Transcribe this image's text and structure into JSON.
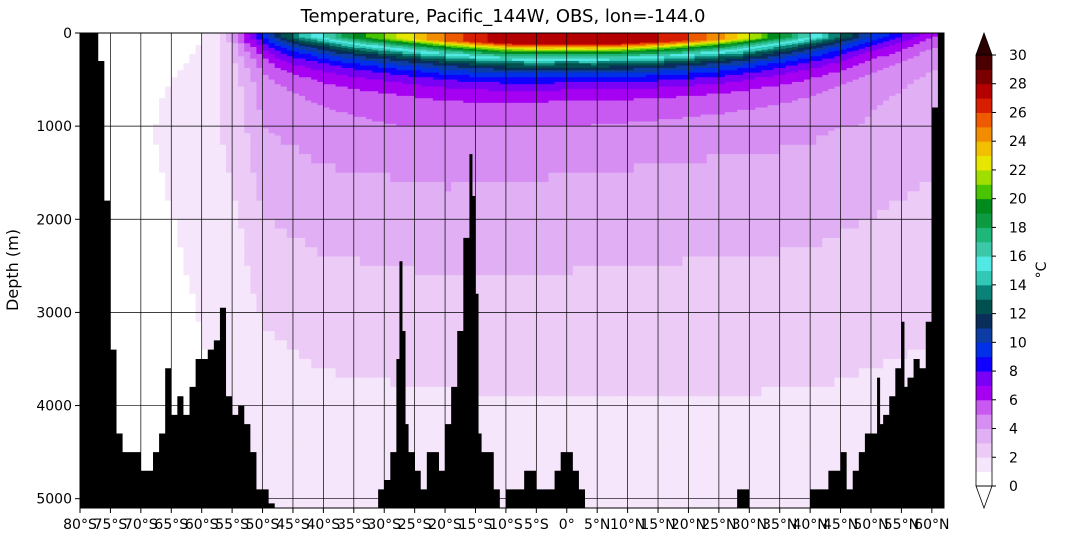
{
  "chart_data": {
    "type": "heatmap",
    "title": "Temperature, Pacific_144W, OBS, lon=-144.0",
    "xlabel": "",
    "ylabel": "Depth (m)",
    "xlim": [
      -80,
      62
    ],
    "ylim": [
      5100,
      0
    ],
    "x_ticks": [
      {
        "value": -80,
        "label": "80°S"
      },
      {
        "value": -75,
        "label": "75°S"
      },
      {
        "value": -70,
        "label": "70°S"
      },
      {
        "value": -65,
        "label": "65°S"
      },
      {
        "value": -60,
        "label": "60°S"
      },
      {
        "value": -55,
        "label": "55°S"
      },
      {
        "value": -50,
        "label": "50°S"
      },
      {
        "value": -45,
        "label": "45°S"
      },
      {
        "value": -40,
        "label": "40°S"
      },
      {
        "value": -35,
        "label": "35°S"
      },
      {
        "value": -30,
        "label": "30°S"
      },
      {
        "value": -25,
        "label": "25°S"
      },
      {
        "value": -20,
        "label": "20°S"
      },
      {
        "value": -15,
        "label": "15°S"
      },
      {
        "value": -10,
        "label": "10°S"
      },
      {
        "value": -5,
        "label": "5°S"
      },
      {
        "value": 0,
        "label": "0°"
      },
      {
        "value": 5,
        "label": "5°N"
      },
      {
        "value": 10,
        "label": "10°N"
      },
      {
        "value": 15,
        "label": "15°N"
      },
      {
        "value": 20,
        "label": "20°N"
      },
      {
        "value": 25,
        "label": "25°N"
      },
      {
        "value": 30,
        "label": "30°N"
      },
      {
        "value": 35,
        "label": "35°N"
      },
      {
        "value": 40,
        "label": "40°N"
      },
      {
        "value": 45,
        "label": "45°N"
      },
      {
        "value": 50,
        "label": "50°N"
      },
      {
        "value": 55,
        "label": "55°N"
      },
      {
        "value": 60,
        "label": "60°N"
      }
    ],
    "y_ticks": [
      0,
      1000,
      2000,
      3000,
      4000,
      5000
    ],
    "colorbar": {
      "label": "°C",
      "min": 0,
      "max": 30,
      "step": 1,
      "ticks": [
        0,
        2,
        4,
        6,
        8,
        10,
        12,
        14,
        16,
        18,
        20,
        22,
        24,
        26,
        28,
        30
      ],
      "extend": "both",
      "colors": [
        "#ffffff",
        "#f6e6fb",
        "#ecccf7",
        "#e1b0f4",
        "#d68ef3",
        "#c85af2",
        "#a500f2",
        "#7a00f5",
        "#1000ff",
        "#0030e8",
        "#0c3ca4",
        "#0a2e5a",
        "#00504f",
        "#0b8277",
        "#31c8b6",
        "#52e9e4",
        "#3cc8a8",
        "#1fb67a",
        "#0e9a40",
        "#008a1c",
        "#48c400",
        "#a0de00",
        "#e6e600",
        "#f2c000",
        "#f28c00",
        "#ee5a00",
        "#d81e00",
        "#b40000",
        "#7a0000",
        "#4a0000"
      ],
      "under_color": "#ffffff",
      "over_color": "#2b0000"
    },
    "series": [
      {
        "name": "surface_temperature",
        "x": [
          -76,
          -72,
          -68,
          -64,
          -60,
          -56,
          -52,
          -48,
          -44,
          -40,
          -35,
          -30,
          -25,
          -20,
          -15,
          -10,
          -5,
          0,
          5,
          10,
          15,
          20,
          25,
          30,
          35,
          40,
          45,
          50,
          55,
          60
        ],
        "values": [
          -1.5,
          -1,
          -0.5,
          0,
          1,
          2.5,
          7,
          11,
          14,
          16,
          19,
          21,
          23,
          25,
          26.5,
          27.5,
          27.5,
          27,
          27.5,
          27.5,
          27,
          26,
          24.5,
          22,
          19,
          16,
          13,
          10,
          8,
          6
        ]
      },
      {
        "name": "depth_1000m_temperature",
        "x": [
          -76,
          -60,
          -54,
          -50,
          -40,
          -20,
          0,
          20,
          40,
          50,
          60
        ],
        "values": [
          0.5,
          1.5,
          2.5,
          4,
          4.5,
          4.8,
          4.6,
          4.4,
          4.2,
          3.8,
          3.4
        ]
      },
      {
        "name": "bottom_temperature",
        "x": [
          -76,
          -60,
          -40,
          -20,
          0,
          20,
          40,
          60
        ],
        "values": [
          0.2,
          0.8,
          1.4,
          1.5,
          1.6,
          1.6,
          1.6,
          1.5
        ]
      },
      {
        "name": "seafloor_depth",
        "x": [
          -80,
          -79,
          -78,
          -77,
          -76,
          -75,
          -74,
          -73,
          -72,
          -71,
          -70,
          -69,
          -68,
          -67,
          -66,
          -65,
          -64,
          -63,
          -62,
          -61,
          -60,
          -59,
          -58,
          -57,
          -56,
          -55,
          -54,
          -53,
          -52,
          -51,
          -50,
          -49,
          -48,
          -47,
          -46,
          -45,
          -44,
          -42,
          -40,
          -38,
          -36,
          -34,
          -32,
          -31,
          -30,
          -29,
          -28,
          -27.5,
          -27,
          -26.5,
          -26,
          -25,
          -24,
          -23,
          -22,
          -21,
          -20,
          -19,
          -18,
          -17,
          -16,
          -15.5,
          -15,
          -14.5,
          -14,
          -13,
          -12,
          -11,
          -10,
          -9,
          -8,
          -7,
          -6,
          -5,
          -4,
          -3,
          -2,
          -1,
          0,
          1,
          2,
          3,
          4,
          5,
          6,
          7,
          8,
          9,
          10,
          12,
          15,
          18,
          20,
          22,
          25,
          27,
          28,
          30,
          32,
          35,
          38,
          40,
          41,
          42,
          43,
          44,
          45,
          46,
          47,
          48,
          49,
          50,
          51,
          51.5,
          52,
          53,
          54,
          55,
          55.5,
          56,
          57,
          58,
          59,
          60,
          61,
          62
        ],
        "values": [
          0,
          0,
          0,
          300,
          1800,
          3400,
          4300,
          4500,
          4500,
          4500,
          4700,
          4700,
          4500,
          4300,
          3600,
          4100,
          3900,
          4100,
          3800,
          3500,
          3500,
          3400,
          3300,
          2950,
          3900,
          4100,
          4000,
          4200,
          4500,
          4900,
          4900,
          5050,
          5100,
          5100,
          5100,
          5100,
          5100,
          5100,
          5100,
          5100,
          5100,
          5100,
          5100,
          4900,
          4800,
          4500,
          3500,
          2450,
          3200,
          4200,
          4500,
          4700,
          4900,
          4500,
          4500,
          4700,
          4200,
          3800,
          3200,
          2200,
          1300,
          1750,
          2800,
          4300,
          4500,
          4500,
          4900,
          5100,
          4900,
          4900,
          4900,
          4700,
          4700,
          4900,
          4900,
          4900,
          4700,
          4500,
          4500,
          4700,
          4900,
          5100,
          5100,
          5100,
          5100,
          5100,
          5100,
          5100,
          5100,
          5100,
          5100,
          5100,
          5100,
          5100,
          5100,
          5100,
          4900,
          5100,
          5100,
          5100,
          5100,
          4900,
          4900,
          4900,
          4700,
          4700,
          4500,
          4900,
          4700,
          4500,
          4300,
          4300,
          3700,
          4200,
          4100,
          3900,
          3600,
          3100,
          3800,
          3700,
          3500,
          3600,
          3100,
          800,
          0,
          0
        ]
      }
    ],
    "grid": true,
    "legend": "colorbar-right"
  }
}
